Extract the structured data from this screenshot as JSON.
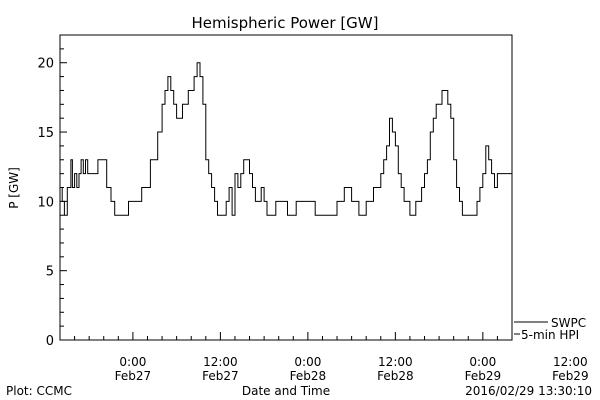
{
  "chart_data": {
    "type": "line",
    "title": "Hemispheric Power [GW]",
    "xlabel": "Date and Time",
    "ylabel": "P [GW]",
    "ylim": [
      0,
      22
    ],
    "xlim_hours": [
      -10,
      52
    ],
    "y_ticks": [
      0,
      5,
      10,
      15,
      20
    ],
    "x_ticks": [
      {
        "hour": 0,
        "time": "0:00",
        "date": "Feb27"
      },
      {
        "hour": 12,
        "time": "12:00",
        "date": "Feb27"
      },
      {
        "hour": 24,
        "time": "0:00",
        "date": "Feb28"
      },
      {
        "hour": 36,
        "time": "12:00",
        "date": "Feb28"
      },
      {
        "hour": 48,
        "time": "0:00",
        "date": "Feb29"
      },
      {
        "hour": 60,
        "time": "12:00",
        "date": "Feb29"
      }
    ],
    "grid": false,
    "series": [
      {
        "name": "SWPC 5-min HPI",
        "x": [
          -10,
          -9.7,
          -9.4,
          -9.0,
          -8.5,
          -8.3,
          -8.0,
          -7.7,
          -7.4,
          -7.1,
          -6.8,
          -6.5,
          -6.2,
          -5.8,
          -5.3,
          -4.8,
          -4.2,
          -3.6,
          -3.0,
          -2.5,
          -2.0,
          -1.6,
          -1.2,
          -0.6,
          0.0,
          1.2,
          2.4,
          3.4,
          4.0,
          4.4,
          4.8,
          5.2,
          5.6,
          6.0,
          6.4,
          6.8,
          7.2,
          7.6,
          8.0,
          8.4,
          8.8,
          9.2,
          9.6,
          10.0,
          10.4,
          10.8,
          11.2,
          11.6,
          12.0,
          12.4,
          12.8,
          13.2,
          13.6,
          14.0,
          14.4,
          14.8,
          15.2,
          15.6,
          16.0,
          16.4,
          16.8,
          17.2,
          17.6,
          18.0,
          18.4,
          18.8,
          19.2,
          19.6,
          20.0,
          20.4,
          20.8,
          21.2,
          21.6,
          22.0,
          22.4,
          22.8,
          23.2,
          23.6,
          24.0,
          25.0,
          26.0,
          27.0,
          28.0,
          29.0,
          30.0,
          31.0,
          32.0,
          33.0,
          34.0,
          34.4,
          34.8,
          35.2,
          35.6,
          36.0,
          36.4,
          36.8,
          37.2,
          37.6,
          38.0,
          38.4,
          38.8,
          39.2,
          39.6,
          40.0,
          40.4,
          40.8,
          41.2,
          41.6,
          42.0,
          42.4,
          42.8,
          43.2,
          43.6,
          44.0,
          44.4,
          44.8,
          45.2,
          45.6,
          46.0,
          46.4,
          46.8,
          47.2,
          47.6,
          48.0,
          48.4,
          48.8,
          49.2,
          49.6,
          50.0,
          51.0,
          52.0
        ],
        "values": [
          11,
          10,
          9,
          11,
          13,
          11,
          12,
          11,
          12,
          13,
          12,
          13,
          12,
          12,
          12,
          13,
          13,
          11,
          10,
          9,
          9,
          9,
          9,
          10,
          10,
          11,
          13,
          15,
          17,
          18,
          19,
          18,
          17,
          16,
          16,
          17,
          17,
          18,
          18,
          19,
          20,
          19,
          17,
          13,
          12,
          11,
          10,
          9,
          9,
          9,
          10,
          11,
          9,
          12,
          11,
          12,
          13,
          13,
          12,
          11,
          10,
          10,
          11,
          10,
          9,
          9,
          9,
          10,
          10,
          10,
          10,
          9,
          9,
          9,
          10,
          10,
          10,
          10,
          10,
          9,
          9,
          9,
          10,
          11,
          10,
          9,
          10,
          11,
          12,
          13,
          14,
          16,
          15,
          14,
          12,
          11,
          10,
          10,
          9,
          9,
          10,
          10,
          11,
          12,
          13,
          15,
          16,
          17,
          17,
          18,
          18,
          17,
          16,
          13,
          11,
          10,
          9,
          9,
          9,
          9,
          9,
          10,
          11,
          12,
          14,
          13,
          12,
          11,
          12,
          12,
          14
        ]
      }
    ]
  },
  "legend": {
    "line1": "SWPC",
    "line2": "5-min HPI"
  },
  "footer": {
    "left": "Plot: CCMC",
    "right": "2016/02/29  13:30:10"
  }
}
